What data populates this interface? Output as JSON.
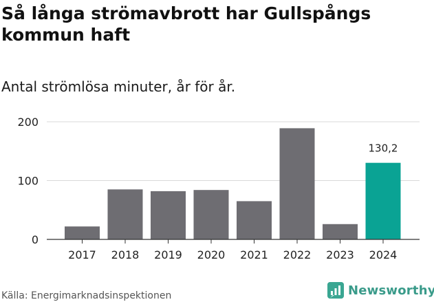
{
  "header": {
    "title": "Så långa strömavbrott har Gullspångs kommun haft",
    "subtitle": "Antal strömlösa minuter, år för år."
  },
  "footer": {
    "source": "Källa: Energimarknadsinspektionen",
    "brand": "Newsworthy"
  },
  "colors": {
    "bar": "#6e6d72",
    "highlight": "#0aa394",
    "grid": "#d9d9d9",
    "axis": "#333333",
    "brand": "#3a9b8a"
  },
  "icons": {
    "brand_logo": "newsworthy-logo-icon"
  },
  "chart_data": {
    "type": "bar",
    "categories": [
      "2017",
      "2018",
      "2019",
      "2020",
      "2021",
      "2022",
      "2023",
      "2024"
    ],
    "values": [
      22,
      85,
      82,
      84,
      65,
      189,
      26,
      130.2
    ],
    "highlight_index": 7,
    "data_labels": [
      null,
      null,
      null,
      null,
      null,
      null,
      null,
      "130,2"
    ],
    "yticks": [
      0,
      100,
      200
    ],
    "ylim": [
      0,
      200
    ],
    "grid": true,
    "legend": false
  }
}
